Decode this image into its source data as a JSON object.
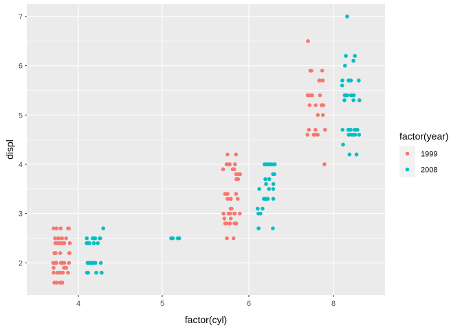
{
  "chart_data": {
    "type": "scatter",
    "xlabel": "factor(cyl)",
    "ylabel": "displ",
    "x_categories": [
      "4",
      "5",
      "6",
      "8"
    ],
    "yticks": [
      2,
      3,
      4,
      5,
      6,
      7
    ],
    "ylim": [
      1.35,
      7.25
    ],
    "jitter": true,
    "grid": true,
    "legend": {
      "title": "factor(year)",
      "placement": "right"
    },
    "series": [
      {
        "name": "1999",
        "color": "#F8766D",
        "points": [
          [
            "4",
            1.6
          ],
          [
            "4",
            1.6
          ],
          [
            "4",
            1.6
          ],
          [
            "4",
            1.6
          ],
          [
            "4",
            1.6
          ],
          [
            "4",
            1.8
          ],
          [
            "4",
            1.8
          ],
          [
            "4",
            1.8
          ],
          [
            "4",
            1.8
          ],
          [
            "4",
            1.8
          ],
          [
            "4",
            1.8
          ],
          [
            "4",
            1.9
          ],
          [
            "4",
            1.9
          ],
          [
            "4",
            1.9
          ],
          [
            "4",
            2.0
          ],
          [
            "4",
            2.0
          ],
          [
            "4",
            2.0
          ],
          [
            "4",
            2.0
          ],
          [
            "4",
            2.0
          ],
          [
            "4",
            2.0
          ],
          [
            "4",
            2.0
          ],
          [
            "4",
            2.0
          ],
          [
            "4",
            2.0
          ],
          [
            "4",
            2.2
          ],
          [
            "4",
            2.2
          ],
          [
            "4",
            2.2
          ],
          [
            "4",
            2.2
          ],
          [
            "4",
            2.2
          ],
          [
            "4",
            2.4
          ],
          [
            "4",
            2.4
          ],
          [
            "4",
            2.4
          ],
          [
            "4",
            2.4
          ],
          [
            "4",
            2.4
          ],
          [
            "4",
            2.4
          ],
          [
            "4",
            2.4
          ],
          [
            "4",
            2.4
          ],
          [
            "4",
            2.5
          ],
          [
            "4",
            2.5
          ],
          [
            "4",
            2.5
          ],
          [
            "4",
            2.5
          ],
          [
            "4",
            2.5
          ],
          [
            "4",
            2.5
          ],
          [
            "4",
            2.7
          ],
          [
            "4",
            2.7
          ],
          [
            "4",
            2.7
          ],
          [
            "4",
            2.7
          ],
          [
            "4",
            2.7
          ],
          [
            "6",
            2.5
          ],
          [
            "6",
            2.5
          ],
          [
            "6",
            2.8
          ],
          [
            "6",
            2.8
          ],
          [
            "6",
            2.8
          ],
          [
            "6",
            2.8
          ],
          [
            "6",
            2.8
          ],
          [
            "6",
            2.9
          ],
          [
            "6",
            2.9
          ],
          [
            "6",
            3.0
          ],
          [
            "6",
            3.0
          ],
          [
            "6",
            3.0
          ],
          [
            "6",
            3.0
          ],
          [
            "6",
            3.0
          ],
          [
            "6",
            3.0
          ],
          [
            "6",
            3.1
          ],
          [
            "6",
            3.1
          ],
          [
            "6",
            3.3
          ],
          [
            "6",
            3.3
          ],
          [
            "6",
            3.3
          ],
          [
            "6",
            3.3
          ],
          [
            "6",
            3.3
          ],
          [
            "6",
            3.4
          ],
          [
            "6",
            3.4
          ],
          [
            "6",
            3.4
          ],
          [
            "6",
            3.4
          ],
          [
            "6",
            3.7
          ],
          [
            "6",
            3.7
          ],
          [
            "6",
            3.8
          ],
          [
            "6",
            3.8
          ],
          [
            "6",
            3.8
          ],
          [
            "6",
            3.8
          ],
          [
            "6",
            3.9
          ],
          [
            "6",
            3.9
          ],
          [
            "6",
            3.9
          ],
          [
            "6",
            4.0
          ],
          [
            "6",
            4.0
          ],
          [
            "6",
            4.0
          ],
          [
            "6",
            4.0
          ],
          [
            "6",
            4.0
          ],
          [
            "6",
            4.2
          ],
          [
            "6",
            4.2
          ],
          [
            "8",
            4.0
          ],
          [
            "8",
            4.6
          ],
          [
            "8",
            4.6
          ],
          [
            "8",
            4.6
          ],
          [
            "8",
            4.6
          ],
          [
            "8",
            4.7
          ],
          [
            "8",
            4.7
          ],
          [
            "8",
            4.7
          ],
          [
            "8",
            5.0
          ],
          [
            "8",
            5.0
          ],
          [
            "8",
            5.2
          ],
          [
            "8",
            5.2
          ],
          [
            "8",
            5.2
          ],
          [
            "8",
            5.2
          ],
          [
            "8",
            5.4
          ],
          [
            "8",
            5.4
          ],
          [
            "8",
            5.4
          ],
          [
            "8",
            5.4
          ],
          [
            "8",
            5.7
          ],
          [
            "8",
            5.7
          ],
          [
            "8",
            5.7
          ],
          [
            "8",
            5.9
          ],
          [
            "8",
            5.9
          ],
          [
            "8",
            5.9
          ],
          [
            "8",
            6.5
          ]
        ]
      },
      {
        "name": "2008",
        "color": "#00BFC4",
        "points": [
          [
            "4",
            1.8
          ],
          [
            "4",
            1.8
          ],
          [
            "4",
            1.8
          ],
          [
            "4",
            1.8
          ],
          [
            "4",
            1.8
          ],
          [
            "4",
            2.0
          ],
          [
            "4",
            2.0
          ],
          [
            "4",
            2.0
          ],
          [
            "4",
            2.0
          ],
          [
            "4",
            2.0
          ],
          [
            "4",
            2.0
          ],
          [
            "4",
            2.0
          ],
          [
            "4",
            2.0
          ],
          [
            "4",
            2.0
          ],
          [
            "4",
            2.0
          ],
          [
            "4",
            2.0
          ],
          [
            "4",
            2.4
          ],
          [
            "4",
            2.4
          ],
          [
            "4",
            2.4
          ],
          [
            "4",
            2.4
          ],
          [
            "4",
            2.4
          ],
          [
            "4",
            2.4
          ],
          [
            "4",
            2.5
          ],
          [
            "4",
            2.5
          ],
          [
            "4",
            2.5
          ],
          [
            "4",
            2.5
          ],
          [
            "4",
            2.5
          ],
          [
            "4",
            2.5
          ],
          [
            "4",
            2.5
          ],
          [
            "4",
            2.7
          ],
          [
            "5",
            2.5
          ],
          [
            "5",
            2.5
          ],
          [
            "5",
            2.5
          ],
          [
            "5",
            2.5
          ],
          [
            "6",
            2.7
          ],
          [
            "6",
            2.7
          ],
          [
            "6",
            2.7
          ],
          [
            "6",
            3.0
          ],
          [
            "6",
            3.0
          ],
          [
            "6",
            3.1
          ],
          [
            "6",
            3.1
          ],
          [
            "6",
            3.3
          ],
          [
            "6",
            3.3
          ],
          [
            "6",
            3.3
          ],
          [
            "6",
            3.3
          ],
          [
            "6",
            3.3
          ],
          [
            "6",
            3.3
          ],
          [
            "6",
            3.3
          ],
          [
            "6",
            3.5
          ],
          [
            "6",
            3.5
          ],
          [
            "6",
            3.5
          ],
          [
            "6",
            3.6
          ],
          [
            "6",
            3.6
          ],
          [
            "6",
            3.7
          ],
          [
            "6",
            3.7
          ],
          [
            "6",
            3.8
          ],
          [
            "6",
            3.8
          ],
          [
            "6",
            4.0
          ],
          [
            "6",
            4.0
          ],
          [
            "6",
            4.0
          ],
          [
            "6",
            4.0
          ],
          [
            "6",
            4.0
          ],
          [
            "6",
            4.0
          ],
          [
            "6",
            4.0
          ],
          [
            "6",
            4.0
          ],
          [
            "8",
            4.2
          ],
          [
            "8",
            4.2
          ],
          [
            "8",
            4.4
          ],
          [
            "8",
            4.6
          ],
          [
            "8",
            4.6
          ],
          [
            "8",
            4.6
          ],
          [
            "8",
            4.6
          ],
          [
            "8",
            4.6
          ],
          [
            "8",
            4.7
          ],
          [
            "8",
            4.7
          ],
          [
            "8",
            4.7
          ],
          [
            "8",
            4.7
          ],
          [
            "8",
            4.7
          ],
          [
            "8",
            4.7
          ],
          [
            "8",
            4.7
          ],
          [
            "8",
            4.7
          ],
          [
            "8",
            5.3
          ],
          [
            "8",
            5.3
          ],
          [
            "8",
            5.3
          ],
          [
            "8",
            5.4
          ],
          [
            "8",
            5.4
          ],
          [
            "8",
            5.4
          ],
          [
            "8",
            5.4
          ],
          [
            "8",
            5.4
          ],
          [
            "8",
            5.6
          ],
          [
            "8",
            5.7
          ],
          [
            "8",
            5.7
          ],
          [
            "8",
            5.7
          ],
          [
            "8",
            5.7
          ],
          [
            "8",
            6.0
          ],
          [
            "8",
            6.1
          ],
          [
            "8",
            6.2
          ],
          [
            "8",
            6.2
          ],
          [
            "8",
            7.0
          ]
        ]
      }
    ]
  }
}
